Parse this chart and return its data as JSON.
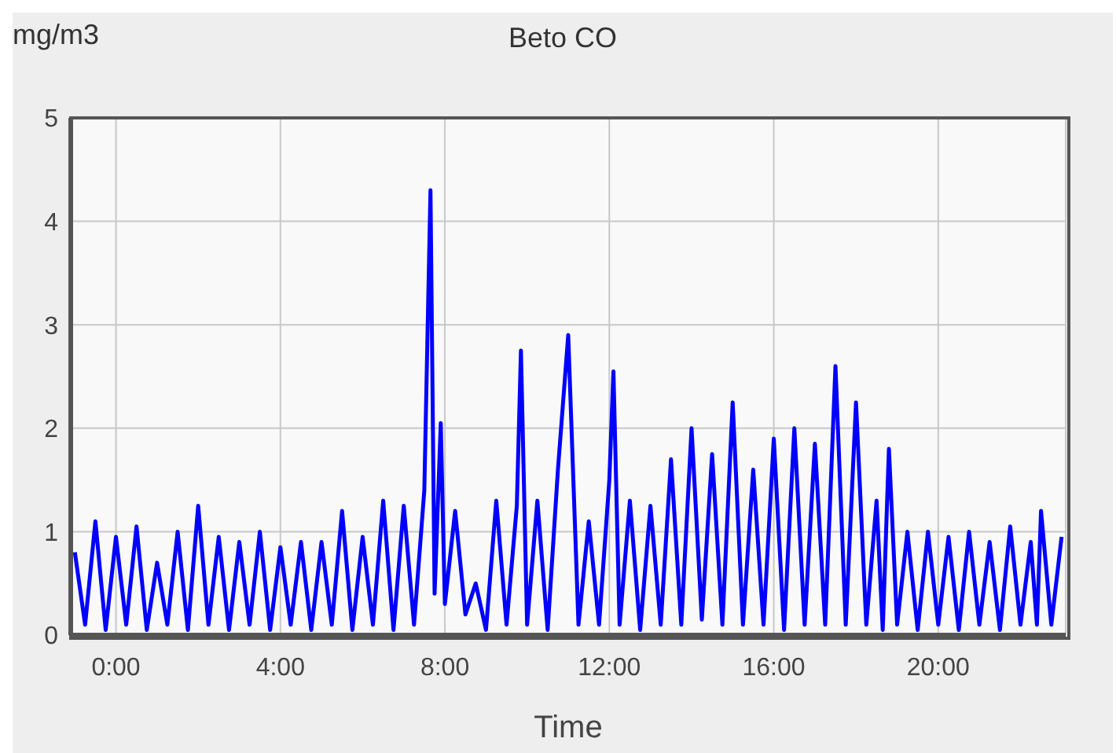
{
  "chart_data": {
    "type": "line",
    "title": "Beto CO",
    "ylabel": "mg/m3",
    "xlabel": "Time",
    "x": [
      -1.0,
      -0.75,
      -0.5,
      -0.25,
      0,
      0.25,
      0.5,
      0.75,
      1.0,
      1.25,
      1.5,
      1.75,
      2.0,
      2.25,
      2.5,
      2.75,
      3.0,
      3.25,
      3.5,
      3.75,
      4.0,
      4.25,
      4.5,
      4.75,
      5.0,
      5.25,
      5.5,
      5.75,
      6.0,
      6.25,
      6.5,
      6.75,
      7.0,
      7.25,
      7.5,
      7.65,
      7.75,
      7.9,
      8.0,
      8.25,
      8.5,
      8.75,
      9.0,
      9.25,
      9.5,
      9.75,
      9.85,
      10.0,
      10.25,
      10.5,
      10.75,
      11.0,
      11.25,
      11.5,
      11.75,
      12.0,
      12.1,
      12.25,
      12.5,
      12.75,
      13.0,
      13.25,
      13.5,
      13.75,
      14.0,
      14.25,
      14.5,
      14.75,
      15.0,
      15.25,
      15.5,
      15.75,
      16.0,
      16.25,
      16.5,
      16.75,
      17.0,
      17.25,
      17.5,
      17.75,
      18.0,
      18.25,
      18.5,
      18.65,
      18.8,
      19.0,
      19.25,
      19.5,
      19.75,
      20.0,
      20.25,
      20.5,
      20.75,
      21.0,
      21.25,
      21.5,
      21.75,
      22.0,
      22.25,
      22.4,
      22.5,
      22.75,
      23.0
    ],
    "series": [
      {
        "color": "#0000ff",
        "values": [
          0.8,
          0.1,
          1.1,
          0.05,
          0.95,
          0.1,
          1.05,
          0.05,
          0.7,
          0.1,
          1.0,
          0.05,
          1.25,
          0.1,
          0.95,
          0.05,
          0.9,
          0.1,
          1.0,
          0.05,
          0.85,
          0.1,
          0.9,
          0.05,
          0.9,
          0.1,
          1.2,
          0.05,
          0.95,
          0.1,
          1.3,
          0.05,
          1.25,
          0.1,
          1.4,
          4.3,
          0.4,
          2.05,
          0.3,
          1.2,
          0.2,
          0.5,
          0.05,
          1.3,
          0.1,
          1.25,
          2.75,
          0.1,
          1.3,
          0.05,
          1.6,
          2.9,
          0.1,
          1.1,
          0.1,
          1.5,
          2.55,
          0.1,
          1.3,
          0.05,
          1.25,
          0.1,
          1.7,
          0.1,
          2.0,
          0.15,
          1.75,
          0.1,
          2.25,
          0.1,
          1.6,
          0.1,
          1.9,
          0.05,
          2.0,
          0.1,
          1.85,
          0.1,
          2.6,
          0.1,
          2.25,
          0.1,
          1.3,
          0.05,
          1.8,
          0.1,
          1.0,
          0.05,
          1.0,
          0.1,
          0.95,
          0.05,
          1.0,
          0.1,
          0.9,
          0.05,
          1.05,
          0.1,
          0.9,
          0.1,
          1.2,
          0.1,
          0.95
        ]
      }
    ],
    "xlim": [
      -1.1,
      23.1
    ],
    "xticks": [
      {
        "value": 0,
        "label": "0:00"
      },
      {
        "value": 4,
        "label": "4:00"
      },
      {
        "value": 8,
        "label": "8:00"
      },
      {
        "value": 12,
        "label": "12:00"
      },
      {
        "value": 16,
        "label": "16:00"
      },
      {
        "value": 20,
        "label": "20:00"
      }
    ],
    "ylim": [
      0,
      5
    ],
    "yticks": [
      0,
      1,
      2,
      3,
      4,
      5
    ],
    "grid": true,
    "legend": false,
    "marker": "none",
    "line_style": "solid"
  }
}
